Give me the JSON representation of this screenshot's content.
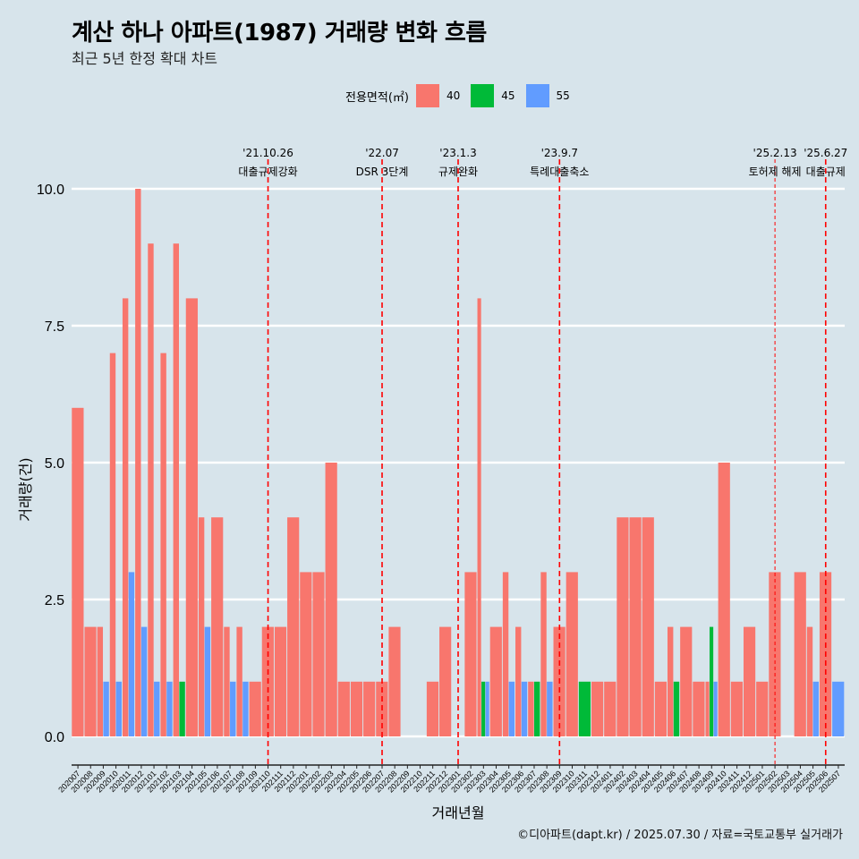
{
  "header": {
    "title": "계산 하나 아파트(1987) 거래량 변화 흐름",
    "subtitle": "최근 5년 한정 확대 차트"
  },
  "legend": {
    "title": "전용면적(㎡)",
    "items": [
      {
        "label": "40",
        "color": "#f8766d"
      },
      {
        "label": "45",
        "color": "#00ba38"
      },
      {
        "label": "55",
        "color": "#619cff"
      }
    ]
  },
  "caption": "©디아파트(dapt.kr) / 2025.07.30 / 자료=국토교통부 실거래가",
  "chart_data": {
    "type": "bar",
    "stacking": "dodge",
    "xlabel": "거래년월",
    "ylabel": "거래량(건)",
    "ylim": [
      0,
      10
    ],
    "yticks": [
      "0.0",
      "2.5",
      "5.0",
      "7.5",
      "10.0"
    ],
    "categories": [
      "202007",
      "202008",
      "202009",
      "202010",
      "202011",
      "202012",
      "202101",
      "202102",
      "202103",
      "202104",
      "202105",
      "202106",
      "202107",
      "202108",
      "202109",
      "202110",
      "202111",
      "202112",
      "202201",
      "202202",
      "202203",
      "202204",
      "202205",
      "202206",
      "202207",
      "202208",
      "202209",
      "202210",
      "202211",
      "202212",
      "202301",
      "202302",
      "202303",
      "202304",
      "202305",
      "202306",
      "202307",
      "202308",
      "202309",
      "202310",
      "202311",
      "202312",
      "202401",
      "202402",
      "202403",
      "202404",
      "202405",
      "202406",
      "202407",
      "202408",
      "202409",
      "202410",
      "202411",
      "202412",
      "202501",
      "202502",
      "202503",
      "202504",
      "202505",
      "202506",
      "202507"
    ],
    "series": [
      {
        "name": "40",
        "color": "#f8766d",
        "values": [
          6,
          2,
          2,
          7,
          8,
          10,
          9,
          7,
          9,
          8,
          4,
          4,
          2,
          2,
          1,
          2,
          2,
          4,
          3,
          3,
          5,
          1,
          1,
          1,
          1,
          2,
          0,
          0,
          1,
          2,
          0,
          3,
          8,
          2,
          3,
          2,
          1,
          3,
          2,
          3,
          0,
          1,
          1,
          4,
          4,
          4,
          1,
          2,
          2,
          1,
          1,
          5,
          1,
          2,
          1,
          3,
          0,
          3,
          2,
          3,
          0
        ]
      },
      {
        "name": "45",
        "color": "#00ba38",
        "values": [
          0,
          0,
          0,
          0,
          0,
          0,
          0,
          0,
          1,
          0,
          0,
          0,
          0,
          0,
          0,
          0,
          0,
          0,
          0,
          0,
          0,
          0,
          0,
          0,
          0,
          0,
          0,
          0,
          0,
          0,
          0,
          0,
          1,
          0,
          0,
          0,
          1,
          0,
          0,
          0,
          1,
          0,
          0,
          0,
          0,
          0,
          0,
          1,
          0,
          0,
          2,
          0,
          0,
          0,
          0,
          0,
          0,
          0,
          0,
          0,
          0
        ]
      },
      {
        "name": "55",
        "color": "#619cff",
        "values": [
          0,
          0,
          1,
          1,
          3,
          2,
          1,
          1,
          0,
          0,
          2,
          0,
          1,
          1,
          0,
          0,
          0,
          0,
          0,
          0,
          0,
          0,
          0,
          0,
          0,
          0,
          0,
          0,
          0,
          0,
          0,
          0,
          1,
          0,
          1,
          1,
          0,
          1,
          0,
          0,
          0,
          0,
          0,
          0,
          0,
          0,
          0,
          0,
          0,
          0,
          1,
          0,
          0,
          0,
          0,
          0,
          0,
          0,
          1,
          0,
          1
        ]
      }
    ],
    "events": [
      {
        "date": "'21.10.26",
        "label": "대출규제강화",
        "month": "202110"
      },
      {
        "date": "'22.07",
        "label": "DSR 3단계",
        "month": "202207"
      },
      {
        "date": "'23.1.3",
        "label": "규제완화",
        "month": "202301"
      },
      {
        "date": "'23.9.7",
        "label": "특례대출축소",
        "month": "202309"
      },
      {
        "date": "'25.2.13",
        "label": "토허제 해제",
        "month": "202502"
      },
      {
        "date": "'25.6.27",
        "label": "대출규제",
        "month": "202506"
      }
    ]
  }
}
